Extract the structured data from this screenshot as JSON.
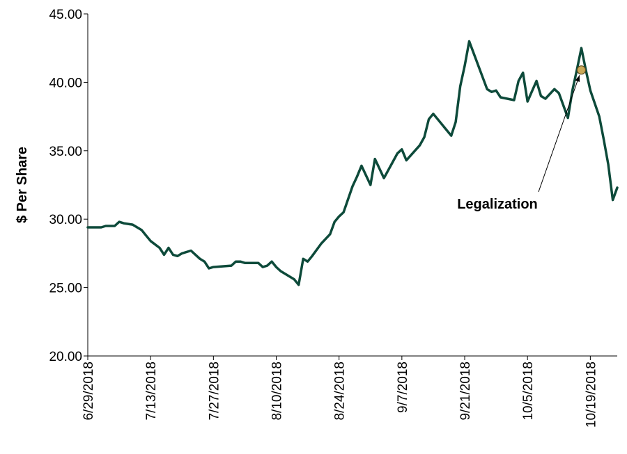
{
  "chart_data": {
    "type": "line",
    "title": "",
    "xlabel": "",
    "ylabel": "$ Per Share",
    "ylim": [
      20,
      45
    ],
    "yticks": [
      "20.00",
      "25.00",
      "30.00",
      "35.00",
      "40.00",
      "45.00"
    ],
    "xlim": [
      "2018-06-29",
      "2018-10-25"
    ],
    "xticks": [
      "6/29/2018",
      "7/13/2018",
      "7/27/2018",
      "8/10/2018",
      "8/24/2018",
      "9/7/2018",
      "9/21/2018",
      "10/5/2018",
      "10/19/2018"
    ],
    "grid": false,
    "colors": {
      "line": "#0d4a3a",
      "marker": "#c9a857",
      "marker_edge": "#5a4a20"
    },
    "series": [
      {
        "x": [
          "2018-06-29",
          "2018-07-02",
          "2018-07-03",
          "2018-07-05",
          "2018-07-06",
          "2018-07-07",
          "2018-07-09",
          "2018-07-11",
          "2018-07-12",
          "2018-07-13",
          "2018-07-15",
          "2018-07-16",
          "2018-07-17",
          "2018-07-18",
          "2018-07-19",
          "2018-07-20",
          "2018-07-22",
          "2018-07-24",
          "2018-07-25",
          "2018-07-26",
          "2018-07-27",
          "2018-07-31",
          "2018-08-01",
          "2018-08-02",
          "2018-08-03",
          "2018-08-06",
          "2018-08-07",
          "2018-08-08",
          "2018-08-09",
          "2018-08-10",
          "2018-08-11",
          "2018-08-14",
          "2018-08-15",
          "2018-08-16",
          "2018-08-17",
          "2018-08-18",
          "2018-08-20",
          "2018-08-22",
          "2018-08-23",
          "2018-08-24",
          "2018-08-25",
          "2018-08-27",
          "2018-08-28",
          "2018-08-29",
          "2018-08-31",
          "2018-09-01",
          "2018-09-03",
          "2018-09-04",
          "2018-09-05",
          "2018-09-06",
          "2018-09-07",
          "2018-09-08",
          "2018-09-11",
          "2018-09-12",
          "2018-09-13",
          "2018-09-14",
          "2018-09-18",
          "2018-09-19",
          "2018-09-20",
          "2018-09-21",
          "2018-09-22",
          "2018-09-26",
          "2018-09-27",
          "2018-09-28",
          "2018-09-29",
          "2018-10-02",
          "2018-10-03",
          "2018-10-04",
          "2018-10-05",
          "2018-10-07",
          "2018-10-08",
          "2018-10-09",
          "2018-10-11",
          "2018-10-12",
          "2018-10-14",
          "2018-10-15",
          "2018-10-16",
          "2018-10-17",
          "2018-10-18",
          "2018-10-19",
          "2018-10-21",
          "2018-10-22",
          "2018-10-23",
          "2018-10-24",
          "2018-10-25"
        ],
        "values": [
          29.4,
          29.4,
          29.5,
          29.5,
          29.8,
          29.7,
          29.6,
          29.2,
          28.8,
          28.4,
          27.9,
          27.4,
          27.9,
          27.4,
          27.3,
          27.5,
          27.7,
          27.1,
          26.9,
          26.4,
          26.5,
          26.6,
          26.9,
          26.9,
          26.8,
          26.8,
          26.5,
          26.6,
          26.9,
          26.5,
          26.2,
          25.6,
          25.2,
          27.1,
          26.9,
          27.3,
          28.2,
          28.9,
          29.8,
          30.2,
          30.5,
          32.4,
          33.1,
          33.9,
          32.5,
          34.4,
          33.0,
          33.6,
          34.2,
          34.8,
          35.1,
          34.3,
          35.4,
          36.0,
          37.3,
          37.7,
          36.1,
          37.1,
          39.7,
          41.2,
          43.0,
          39.5,
          39.3,
          39.4,
          38.9,
          38.7,
          40.1,
          40.7,
          38.6,
          40.1,
          39.0,
          38.8,
          39.5,
          39.2,
          37.4,
          39.4,
          40.9,
          42.5,
          40.9,
          39.4,
          37.5,
          35.8,
          34.0,
          31.4,
          32.3
        ]
      }
    ],
    "annotation": {
      "label": "Legalization",
      "x": "2018-10-17",
      "y": 40.9
    }
  }
}
